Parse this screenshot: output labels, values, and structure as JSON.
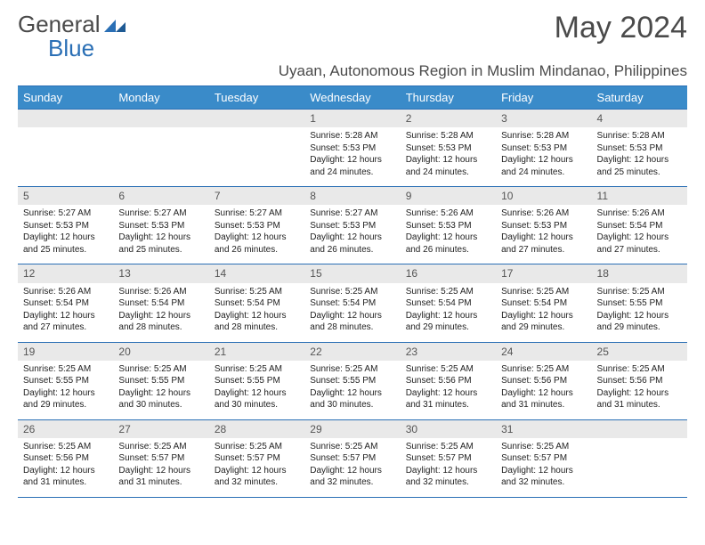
{
  "logo": {
    "text_a": "General",
    "text_b": "Blue"
  },
  "title": "May 2024",
  "location": "Uyaan, Autonomous Region in Muslim Mindanao, Philippines",
  "colors": {
    "header_bg": "#3a8bc9",
    "header_text": "#ffffff",
    "border": "#2a6fb5",
    "daynum_bg": "#e9e9e9",
    "daynum_text": "#555555",
    "body_text": "#222222",
    "page_bg": "#ffffff",
    "title_text": "#4a4a4a"
  },
  "weekdays": [
    "Sunday",
    "Monday",
    "Tuesday",
    "Wednesday",
    "Thursday",
    "Friday",
    "Saturday"
  ],
  "weeks": [
    [
      null,
      null,
      null,
      {
        "n": "1",
        "sr": "Sunrise: 5:28 AM",
        "ss": "Sunset: 5:53 PM",
        "dl": "Daylight: 12 hours and 24 minutes."
      },
      {
        "n": "2",
        "sr": "Sunrise: 5:28 AM",
        "ss": "Sunset: 5:53 PM",
        "dl": "Daylight: 12 hours and 24 minutes."
      },
      {
        "n": "3",
        "sr": "Sunrise: 5:28 AM",
        "ss": "Sunset: 5:53 PM",
        "dl": "Daylight: 12 hours and 24 minutes."
      },
      {
        "n": "4",
        "sr": "Sunrise: 5:28 AM",
        "ss": "Sunset: 5:53 PM",
        "dl": "Daylight: 12 hours and 25 minutes."
      }
    ],
    [
      {
        "n": "5",
        "sr": "Sunrise: 5:27 AM",
        "ss": "Sunset: 5:53 PM",
        "dl": "Daylight: 12 hours and 25 minutes."
      },
      {
        "n": "6",
        "sr": "Sunrise: 5:27 AM",
        "ss": "Sunset: 5:53 PM",
        "dl": "Daylight: 12 hours and 25 minutes."
      },
      {
        "n": "7",
        "sr": "Sunrise: 5:27 AM",
        "ss": "Sunset: 5:53 PM",
        "dl": "Daylight: 12 hours and 26 minutes."
      },
      {
        "n": "8",
        "sr": "Sunrise: 5:27 AM",
        "ss": "Sunset: 5:53 PM",
        "dl": "Daylight: 12 hours and 26 minutes."
      },
      {
        "n": "9",
        "sr": "Sunrise: 5:26 AM",
        "ss": "Sunset: 5:53 PM",
        "dl": "Daylight: 12 hours and 26 minutes."
      },
      {
        "n": "10",
        "sr": "Sunrise: 5:26 AM",
        "ss": "Sunset: 5:53 PM",
        "dl": "Daylight: 12 hours and 27 minutes."
      },
      {
        "n": "11",
        "sr": "Sunrise: 5:26 AM",
        "ss": "Sunset: 5:54 PM",
        "dl": "Daylight: 12 hours and 27 minutes."
      }
    ],
    [
      {
        "n": "12",
        "sr": "Sunrise: 5:26 AM",
        "ss": "Sunset: 5:54 PM",
        "dl": "Daylight: 12 hours and 27 minutes."
      },
      {
        "n": "13",
        "sr": "Sunrise: 5:26 AM",
        "ss": "Sunset: 5:54 PM",
        "dl": "Daylight: 12 hours and 28 minutes."
      },
      {
        "n": "14",
        "sr": "Sunrise: 5:25 AM",
        "ss": "Sunset: 5:54 PM",
        "dl": "Daylight: 12 hours and 28 minutes."
      },
      {
        "n": "15",
        "sr": "Sunrise: 5:25 AM",
        "ss": "Sunset: 5:54 PM",
        "dl": "Daylight: 12 hours and 28 minutes."
      },
      {
        "n": "16",
        "sr": "Sunrise: 5:25 AM",
        "ss": "Sunset: 5:54 PM",
        "dl": "Daylight: 12 hours and 29 minutes."
      },
      {
        "n": "17",
        "sr": "Sunrise: 5:25 AM",
        "ss": "Sunset: 5:54 PM",
        "dl": "Daylight: 12 hours and 29 minutes."
      },
      {
        "n": "18",
        "sr": "Sunrise: 5:25 AM",
        "ss": "Sunset: 5:55 PM",
        "dl": "Daylight: 12 hours and 29 minutes."
      }
    ],
    [
      {
        "n": "19",
        "sr": "Sunrise: 5:25 AM",
        "ss": "Sunset: 5:55 PM",
        "dl": "Daylight: 12 hours and 29 minutes."
      },
      {
        "n": "20",
        "sr": "Sunrise: 5:25 AM",
        "ss": "Sunset: 5:55 PM",
        "dl": "Daylight: 12 hours and 30 minutes."
      },
      {
        "n": "21",
        "sr": "Sunrise: 5:25 AM",
        "ss": "Sunset: 5:55 PM",
        "dl": "Daylight: 12 hours and 30 minutes."
      },
      {
        "n": "22",
        "sr": "Sunrise: 5:25 AM",
        "ss": "Sunset: 5:55 PM",
        "dl": "Daylight: 12 hours and 30 minutes."
      },
      {
        "n": "23",
        "sr": "Sunrise: 5:25 AM",
        "ss": "Sunset: 5:56 PM",
        "dl": "Daylight: 12 hours and 31 minutes."
      },
      {
        "n": "24",
        "sr": "Sunrise: 5:25 AM",
        "ss": "Sunset: 5:56 PM",
        "dl": "Daylight: 12 hours and 31 minutes."
      },
      {
        "n": "25",
        "sr": "Sunrise: 5:25 AM",
        "ss": "Sunset: 5:56 PM",
        "dl": "Daylight: 12 hours and 31 minutes."
      }
    ],
    [
      {
        "n": "26",
        "sr": "Sunrise: 5:25 AM",
        "ss": "Sunset: 5:56 PM",
        "dl": "Daylight: 12 hours and 31 minutes."
      },
      {
        "n": "27",
        "sr": "Sunrise: 5:25 AM",
        "ss": "Sunset: 5:57 PM",
        "dl": "Daylight: 12 hours and 31 minutes."
      },
      {
        "n": "28",
        "sr": "Sunrise: 5:25 AM",
        "ss": "Sunset: 5:57 PM",
        "dl": "Daylight: 12 hours and 32 minutes."
      },
      {
        "n": "29",
        "sr": "Sunrise: 5:25 AM",
        "ss": "Sunset: 5:57 PM",
        "dl": "Daylight: 12 hours and 32 minutes."
      },
      {
        "n": "30",
        "sr": "Sunrise: 5:25 AM",
        "ss": "Sunset: 5:57 PM",
        "dl": "Daylight: 12 hours and 32 minutes."
      },
      {
        "n": "31",
        "sr": "Sunrise: 5:25 AM",
        "ss": "Sunset: 5:57 PM",
        "dl": "Daylight: 12 hours and 32 minutes."
      },
      null
    ]
  ]
}
